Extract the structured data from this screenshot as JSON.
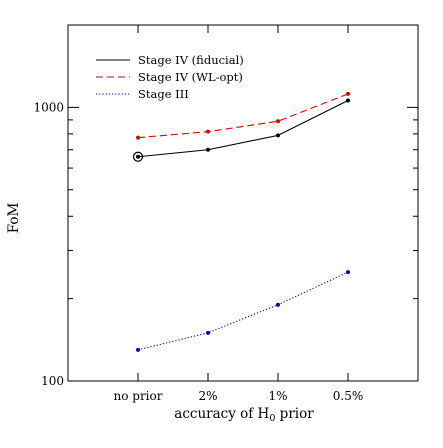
{
  "chart_data": {
    "type": "line",
    "yscale": "log",
    "ylim": [
      100,
      2000
    ],
    "categories": [
      "no prior",
      "2%",
      "1%",
      "0.5%"
    ],
    "xlabel_main": "accuracy of H",
    "xlabel_sub": "0",
    "xlabel_tail": " prior",
    "ylabel": "FoM",
    "y_ticks_labeled": [
      100,
      1000
    ],
    "y_tick_labels": [
      "100",
      "1000"
    ],
    "grid": false,
    "legend_position": "top-left",
    "series": [
      {
        "name": "Stage IV (fiducial)",
        "values": [
          660,
          700,
          790,
          1060
        ],
        "color": "#000000",
        "line_style": "solid",
        "first_point_marker": "circle-dot"
      },
      {
        "name": "Stage IV (WL-opt)",
        "values": [
          775,
          815,
          890,
          1120
        ],
        "color": "#dd0000",
        "line_style": "dashed"
      },
      {
        "name": "Stage III",
        "values": [
          130,
          150,
          190,
          250
        ],
        "color": "#0000cc",
        "line_style": "dotted"
      }
    ]
  }
}
